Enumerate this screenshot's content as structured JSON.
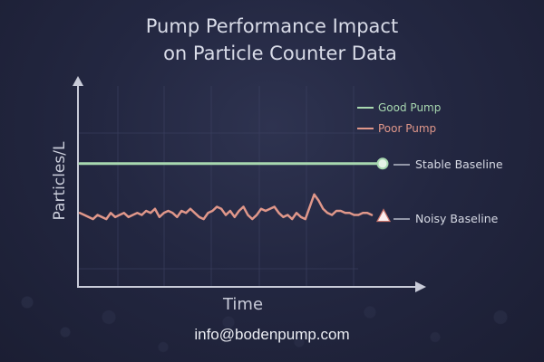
{
  "title": {
    "line1": "Pump Performance Impact",
    "line2": "on Particle Counter Data"
  },
  "footer": {
    "email": "info@bodenpump.com"
  },
  "colors": {
    "background": "#232741",
    "good_pump": "#a8d8b0",
    "poor_pump": "#e0978a",
    "axis": "#c8cbd8",
    "text": "#d9dce8"
  },
  "chart_data": {
    "type": "line",
    "title": "Pump Performance Impact on Particle Counter Data",
    "xlabel": "Time",
    "ylabel": "Particles/L",
    "x_ticks": [],
    "y_ticks": [],
    "grid": true,
    "legend_position": "upper right",
    "legend": [
      "Good Pump",
      "Poor Pump"
    ],
    "series": [
      {
        "name": "Good Pump",
        "color": "#a8d8b0",
        "marker": "circle",
        "values": [
          0.6,
          0.6,
          0.6,
          0.6,
          0.6,
          0.6,
          0.6,
          0.6,
          0.6,
          0.6,
          0.6,
          0.6,
          0.6,
          0.6,
          0.6,
          0.6,
          0.6,
          0.6,
          0.6,
          0.6,
          0.6,
          0.6,
          0.6,
          0.6,
          0.6,
          0.6,
          0.6,
          0.6,
          0.6,
          0.6,
          0.6,
          0.6,
          0.6,
          0.6,
          0.6,
          0.6,
          0.6,
          0.6,
          0.6,
          0.6,
          0.6,
          0.6,
          0.6,
          0.6,
          0.6,
          0.6,
          0.6,
          0.6,
          0.6,
          0.6,
          0.6,
          0.6,
          0.6,
          0.6,
          0.6,
          0.6,
          0.6,
          0.6,
          0.6,
          0.6,
          0.6,
          0.6,
          0.6,
          0.6,
          0.6,
          0.6,
          0.6
        ]
      },
      {
        "name": "Poor Pump",
        "color": "#e0978a",
        "marker": "triangle",
        "values": [
          0.36,
          0.35,
          0.34,
          0.33,
          0.35,
          0.34,
          0.33,
          0.36,
          0.34,
          0.35,
          0.36,
          0.34,
          0.35,
          0.36,
          0.35,
          0.37,
          0.36,
          0.38,
          0.34,
          0.36,
          0.37,
          0.36,
          0.34,
          0.37,
          0.36,
          0.38,
          0.36,
          0.34,
          0.33,
          0.36,
          0.37,
          0.39,
          0.38,
          0.35,
          0.37,
          0.34,
          0.37,
          0.39,
          0.35,
          0.33,
          0.35,
          0.38,
          0.37,
          0.38,
          0.39,
          0.36,
          0.34,
          0.35,
          0.33,
          0.36,
          0.34,
          0.33,
          0.39,
          0.45,
          0.42,
          0.38,
          0.36,
          0.35,
          0.37,
          0.37,
          0.36,
          0.36,
          0.35,
          0.35,
          0.36,
          0.36,
          0.35
        ]
      }
    ],
    "annotations": [
      {
        "text": "Stable Baseline",
        "target": "Good Pump"
      },
      {
        "text": "Noisy Baseline",
        "target": "Poor Pump"
      }
    ],
    "ylim": [
      0,
      1
    ],
    "xlim": [
      0,
      66
    ]
  }
}
